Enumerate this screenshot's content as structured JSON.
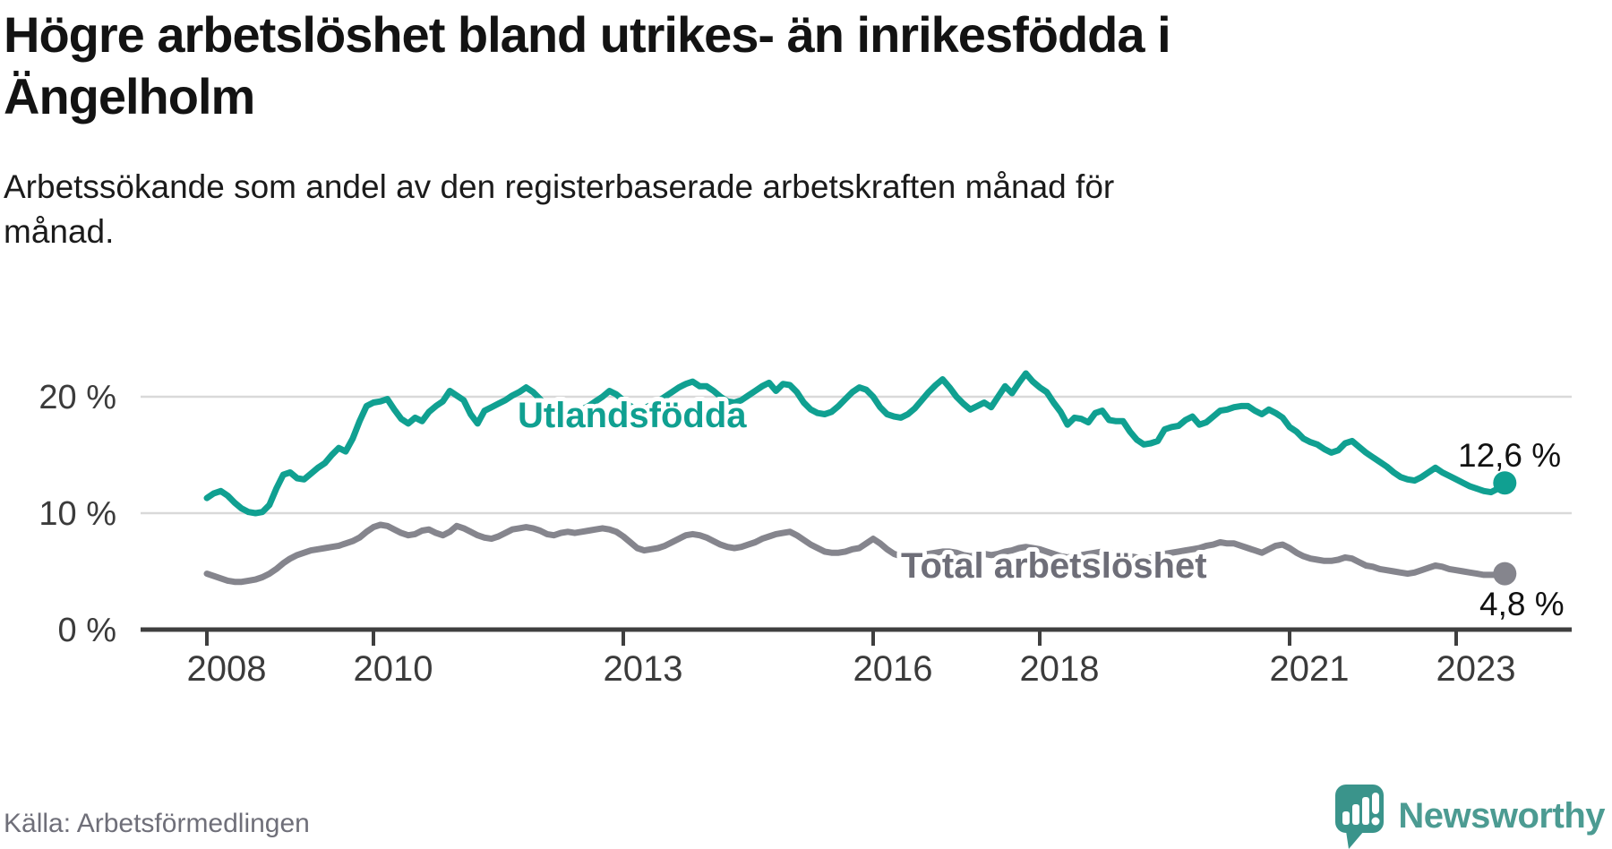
{
  "header": {
    "title_line1": "Högre arbetslöshet bland utrikes- än inrikesfödda i",
    "title_line2": "Ängelholm",
    "subtitle_line1": "Arbetssökande som andel av den registerbaserade arbetskraften månad för",
    "subtitle_line2": "månad."
  },
  "footer": {
    "source": "Källa: Arbetsförmedlingen",
    "brand": "Newsworthy"
  },
  "colors": {
    "teal": "#10a091",
    "gray": "#85858d",
    "gray_label": "#6e6e78",
    "axis": "#3f3f3f",
    "tick_text": "#3b3b3b",
    "grid": "#d9d9d9",
    "value_text": "#111111",
    "brand_text": "#4c9b92",
    "brand_icon": "#3a948b"
  },
  "chart_data": {
    "type": "line",
    "title": "Högre arbetslöshet bland utrikes- än inrikesfödda i Ängelholm",
    "subtitle": "Arbetssökande som andel av den registerbaserade arbetskraften månad för månad.",
    "source": "Källa: Arbetsförmedlingen",
    "frequency": "monthly",
    "x_start": "2008-01",
    "x_end": "2023-08",
    "x_ticks": [
      2008,
      2010,
      2013,
      2016,
      2018,
      2021,
      2023
    ],
    "y_ticks": [
      0,
      10,
      20
    ],
    "y_tick_labels": [
      "0 %",
      "10 %",
      "20 %"
    ],
    "ylim": [
      0,
      23
    ],
    "grid": true,
    "series": [
      {
        "name": "Utlandsfödda",
        "color": "#10a091",
        "end_label": "12,6 %",
        "end_value": 12.6,
        "values": [
          11.3,
          11.7,
          11.9,
          11.5,
          10.9,
          10.4,
          10.1,
          10.0,
          10.1,
          10.7,
          12.1,
          13.3,
          13.5,
          13.0,
          12.9,
          13.4,
          13.9,
          14.3,
          15.0,
          15.6,
          15.3,
          16.4,
          17.9,
          19.2,
          19.5,
          19.6,
          19.8,
          18.9,
          18.1,
          17.7,
          18.2,
          17.9,
          18.7,
          19.2,
          19.6,
          20.5,
          20.1,
          19.7,
          18.5,
          17.7,
          18.8,
          19.1,
          19.4,
          19.7,
          20.1,
          20.4,
          20.8,
          20.4,
          19.8,
          19.0,
          18.5,
          18.3,
          18.4,
          18.6,
          18.9,
          19.2,
          19.6,
          20.0,
          20.5,
          20.2,
          19.7,
          19.2,
          18.9,
          19.0,
          19.3,
          19.6,
          20.0,
          20.4,
          20.8,
          21.1,
          21.3,
          20.9,
          20.9,
          20.5,
          20.0,
          19.6,
          19.5,
          19.7,
          20.1,
          20.5,
          20.9,
          21.2,
          20.5,
          21.1,
          21.0,
          20.4,
          19.5,
          18.9,
          18.6,
          18.5,
          18.7,
          19.2,
          19.8,
          20.4,
          20.8,
          20.6,
          20.0,
          19.1,
          18.5,
          18.3,
          18.2,
          18.5,
          19.0,
          19.7,
          20.4,
          21.0,
          21.5,
          20.8,
          20.0,
          19.4,
          18.9,
          19.2,
          19.5,
          19.1,
          20.0,
          20.9,
          20.3,
          21.2,
          22.0,
          21.3,
          20.8,
          20.4,
          19.5,
          18.7,
          17.6,
          18.2,
          18.1,
          17.8,
          18.6,
          18.8,
          18.0,
          17.9,
          17.9,
          17.0,
          16.3,
          15.9,
          16.0,
          16.2,
          17.2,
          17.4,
          17.5,
          18.0,
          18.3,
          17.6,
          17.8,
          18.3,
          18.8,
          18.9,
          19.1,
          19.2,
          19.2,
          18.8,
          18.5,
          18.9,
          18.6,
          18.2,
          17.4,
          17.0,
          16.4,
          16.1,
          15.9,
          15.5,
          15.2,
          15.4,
          16.0,
          16.2,
          15.7,
          15.2,
          14.8,
          14.4,
          14.0,
          13.5,
          13.1,
          12.9,
          12.8,
          13.1,
          13.5,
          13.9,
          13.5,
          13.2,
          12.9,
          12.6,
          12.3,
          12.1,
          11.9,
          11.8,
          12.1,
          12.6
        ]
      },
      {
        "name": "Total arbetslöshet",
        "color": "#85858d",
        "end_label": "4,8 %",
        "end_value": 4.8,
        "values": [
          4.8,
          4.6,
          4.4,
          4.2,
          4.1,
          4.1,
          4.2,
          4.3,
          4.5,
          4.8,
          5.2,
          5.7,
          6.1,
          6.4,
          6.6,
          6.8,
          6.9,
          7.0,
          7.1,
          7.2,
          7.4,
          7.6,
          7.9,
          8.4,
          8.8,
          9.0,
          8.9,
          8.6,
          8.3,
          8.1,
          8.2,
          8.5,
          8.6,
          8.3,
          8.1,
          8.4,
          8.9,
          8.7,
          8.4,
          8.1,
          7.9,
          7.8,
          8.0,
          8.3,
          8.6,
          8.7,
          8.8,
          8.7,
          8.5,
          8.2,
          8.1,
          8.3,
          8.4,
          8.3,
          8.4,
          8.5,
          8.6,
          8.7,
          8.6,
          8.4,
          8.0,
          7.5,
          7.0,
          6.8,
          6.9,
          7.0,
          7.2,
          7.5,
          7.8,
          8.1,
          8.2,
          8.1,
          7.9,
          7.6,
          7.3,
          7.1,
          7.0,
          7.1,
          7.3,
          7.5,
          7.8,
          8.0,
          8.2,
          8.3,
          8.4,
          8.1,
          7.7,
          7.3,
          7.0,
          6.7,
          6.6,
          6.6,
          6.7,
          6.9,
          7.0,
          7.4,
          7.8,
          7.4,
          6.9,
          6.5,
          6.3,
          6.2,
          6.3,
          6.4,
          6.5,
          6.6,
          6.7,
          6.7,
          6.6,
          6.4,
          6.3,
          6.4,
          6.5,
          6.4,
          6.5,
          6.7,
          6.8,
          7.0,
          7.1,
          7.0,
          6.9,
          6.7,
          6.5,
          6.3,
          6.2,
          6.3,
          6.4,
          6.5,
          6.6,
          6.7,
          6.6,
          6.5,
          6.4,
          6.3,
          6.2,
          6.1,
          6.2,
          6.3,
          6.5,
          6.6,
          6.7,
          6.8,
          6.9,
          7.0,
          7.2,
          7.3,
          7.5,
          7.4,
          7.4,
          7.2,
          7.0,
          6.8,
          6.6,
          6.9,
          7.2,
          7.3,
          7.0,
          6.6,
          6.3,
          6.1,
          6.0,
          5.9,
          5.9,
          6.0,
          6.2,
          6.1,
          5.8,
          5.5,
          5.4,
          5.2,
          5.1,
          5.0,
          4.9,
          4.8,
          4.9,
          5.1,
          5.3,
          5.5,
          5.4,
          5.2,
          5.1,
          5.0,
          4.9,
          4.8,
          4.7,
          4.7,
          4.7,
          4.8
        ]
      }
    ]
  }
}
